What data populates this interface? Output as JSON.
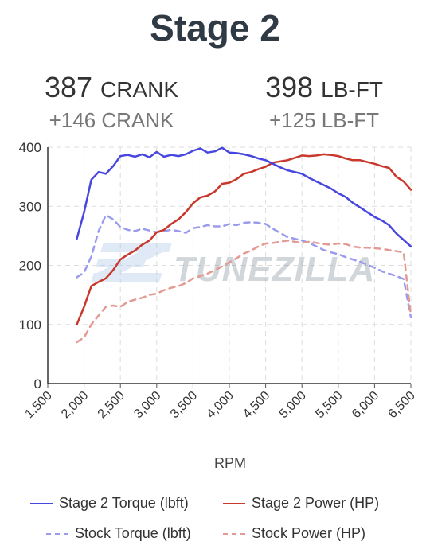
{
  "title": "Stage 2",
  "stats": {
    "power": {
      "value": "387",
      "unit": "CRANK",
      "delta": "+146 CRANK"
    },
    "torque": {
      "value": "398",
      "unit": "LB-FT",
      "delta": "+125 LB-FT"
    }
  },
  "watermark": "TUNEZILLA",
  "colors": {
    "stage2_torque": "#4747e0",
    "stage2_power": "#c8382c",
    "stock_torque": "#9b9bee",
    "stock_power": "#e39a92"
  },
  "chart_data": {
    "type": "line",
    "xlabel": "RPM",
    "ylabel": "",
    "xlim": [
      1500,
      6500
    ],
    "ylim": [
      0,
      400
    ],
    "xticks": [
      "1,500",
      "2,000",
      "2,500",
      "3,000",
      "3,500",
      "4,000",
      "4,500",
      "5,000",
      "5,500",
      "6,000",
      "6,500"
    ],
    "yticks": [
      "0",
      "100",
      "200",
      "300",
      "400"
    ],
    "grid": true,
    "legend_position": "bottom",
    "series": [
      {
        "name": "Stage 2 Torque (lbft)",
        "style": "solid",
        "color": "#4747e0",
        "points": [
          [
            1900,
            245
          ],
          [
            2000,
            290
          ],
          [
            2100,
            345
          ],
          [
            2200,
            358
          ],
          [
            2300,
            355
          ],
          [
            2400,
            368
          ],
          [
            2500,
            385
          ],
          [
            2600,
            387
          ],
          [
            2700,
            384
          ],
          [
            2800,
            388
          ],
          [
            2900,
            383
          ],
          [
            3000,
            392
          ],
          [
            3100,
            384
          ],
          [
            3200,
            387
          ],
          [
            3300,
            385
          ],
          [
            3400,
            388
          ],
          [
            3500,
            394
          ],
          [
            3600,
            398
          ],
          [
            3700,
            391
          ],
          [
            3800,
            393
          ],
          [
            3900,
            399
          ],
          [
            4000,
            391
          ],
          [
            4100,
            390
          ],
          [
            4200,
            388
          ],
          [
            4300,
            385
          ],
          [
            4400,
            381
          ],
          [
            4500,
            378
          ],
          [
            4600,
            372
          ],
          [
            4700,
            366
          ],
          [
            4800,
            361
          ],
          [
            4900,
            358
          ],
          [
            5000,
            355
          ],
          [
            5100,
            348
          ],
          [
            5200,
            342
          ],
          [
            5300,
            336
          ],
          [
            5400,
            330
          ],
          [
            5500,
            322
          ],
          [
            5600,
            316
          ],
          [
            5700,
            306
          ],
          [
            5800,
            298
          ],
          [
            5900,
            290
          ],
          [
            6000,
            282
          ],
          [
            6100,
            276
          ],
          [
            6200,
            268
          ],
          [
            6300,
            254
          ],
          [
            6400,
            243
          ],
          [
            6500,
            232
          ]
        ]
      },
      {
        "name": "Stage 2 Power (HP)",
        "style": "solid",
        "color": "#c8382c",
        "points": [
          [
            1900,
            100
          ],
          [
            2000,
            130
          ],
          [
            2100,
            165
          ],
          [
            2200,
            172
          ],
          [
            2300,
            178
          ],
          [
            2400,
            192
          ],
          [
            2500,
            210
          ],
          [
            2600,
            218
          ],
          [
            2700,
            225
          ],
          [
            2800,
            235
          ],
          [
            2900,
            242
          ],
          [
            3000,
            256
          ],
          [
            3100,
            260
          ],
          [
            3200,
            270
          ],
          [
            3300,
            278
          ],
          [
            3400,
            290
          ],
          [
            3500,
            305
          ],
          [
            3600,
            315
          ],
          [
            3700,
            318
          ],
          [
            3800,
            325
          ],
          [
            3900,
            338
          ],
          [
            4000,
            340
          ],
          [
            4100,
            346
          ],
          [
            4200,
            355
          ],
          [
            4300,
            358
          ],
          [
            4400,
            363
          ],
          [
            4500,
            367
          ],
          [
            4600,
            374
          ],
          [
            4700,
            376
          ],
          [
            4800,
            378
          ],
          [
            4900,
            382
          ],
          [
            5000,
            386
          ],
          [
            5100,
            385
          ],
          [
            5200,
            386
          ],
          [
            5300,
            388
          ],
          [
            5400,
            387
          ],
          [
            5500,
            385
          ],
          [
            5600,
            381
          ],
          [
            5700,
            378
          ],
          [
            5800,
            378
          ],
          [
            5900,
            375
          ],
          [
            6000,
            372
          ],
          [
            6100,
            368
          ],
          [
            6200,
            365
          ],
          [
            6300,
            350
          ],
          [
            6400,
            342
          ],
          [
            6500,
            328
          ]
        ]
      },
      {
        "name": "Stock Torque (lbft)",
        "style": "dashed",
        "color": "#9b9bee",
        "points": [
          [
            1900,
            180
          ],
          [
            2000,
            188
          ],
          [
            2100,
            215
          ],
          [
            2200,
            258
          ],
          [
            2300,
            285
          ],
          [
            2400,
            278
          ],
          [
            2500,
            265
          ],
          [
            2600,
            260
          ],
          [
            2700,
            258
          ],
          [
            2800,
            262
          ],
          [
            2900,
            259
          ],
          [
            3000,
            256
          ],
          [
            3100,
            258
          ],
          [
            3200,
            260
          ],
          [
            3300,
            258
          ],
          [
            3400,
            255
          ],
          [
            3500,
            263
          ],
          [
            3600,
            265
          ],
          [
            3700,
            268
          ],
          [
            3800,
            266
          ],
          [
            3900,
            266
          ],
          [
            4000,
            270
          ],
          [
            4100,
            268
          ],
          [
            4200,
            272
          ],
          [
            4300,
            273
          ],
          [
            4400,
            272
          ],
          [
            4500,
            270
          ],
          [
            4600,
            262
          ],
          [
            4700,
            255
          ],
          [
            4800,
            248
          ],
          [
            4900,
            245
          ],
          [
            5000,
            242
          ],
          [
            5100,
            238
          ],
          [
            5200,
            232
          ],
          [
            5300,
            226
          ],
          [
            5400,
            222
          ],
          [
            5500,
            219
          ],
          [
            5600,
            214
          ],
          [
            5700,
            210
          ],
          [
            5800,
            206
          ],
          [
            5900,
            201
          ],
          [
            6000,
            196
          ],
          [
            6100,
            190
          ],
          [
            6200,
            186
          ],
          [
            6300,
            182
          ],
          [
            6400,
            177
          ],
          [
            6500,
            112
          ]
        ]
      },
      {
        "name": "Stock Power (HP)",
        "style": "dashed",
        "color": "#e39a92",
        "points": [
          [
            1900,
            70
          ],
          [
            2000,
            78
          ],
          [
            2100,
            100
          ],
          [
            2200,
            115
          ],
          [
            2300,
            130
          ],
          [
            2400,
            132
          ],
          [
            2500,
            130
          ],
          [
            2600,
            138
          ],
          [
            2700,
            142
          ],
          [
            2800,
            145
          ],
          [
            2900,
            150
          ],
          [
            3000,
            152
          ],
          [
            3100,
            158
          ],
          [
            3200,
            162
          ],
          [
            3300,
            165
          ],
          [
            3400,
            170
          ],
          [
            3500,
            178
          ],
          [
            3600,
            182
          ],
          [
            3700,
            186
          ],
          [
            3800,
            192
          ],
          [
            3900,
            198
          ],
          [
            4000,
            205
          ],
          [
            4100,
            212
          ],
          [
            4200,
            220
          ],
          [
            4300,
            225
          ],
          [
            4400,
            232
          ],
          [
            4500,
            237
          ],
          [
            4600,
            238
          ],
          [
            4700,
            240
          ],
          [
            4800,
            242
          ],
          [
            4900,
            240
          ],
          [
            5000,
            238
          ],
          [
            5100,
            240
          ],
          [
            5200,
            238
          ],
          [
            5300,
            236
          ],
          [
            5400,
            235
          ],
          [
            5500,
            237
          ],
          [
            5600,
            236
          ],
          [
            5700,
            232
          ],
          [
            5800,
            230
          ],
          [
            5900,
            230
          ],
          [
            6000,
            229
          ],
          [
            6100,
            228
          ],
          [
            6200,
            226
          ],
          [
            6300,
            224
          ],
          [
            6400,
            222
          ],
          [
            6500,
            115
          ]
        ]
      }
    ]
  }
}
